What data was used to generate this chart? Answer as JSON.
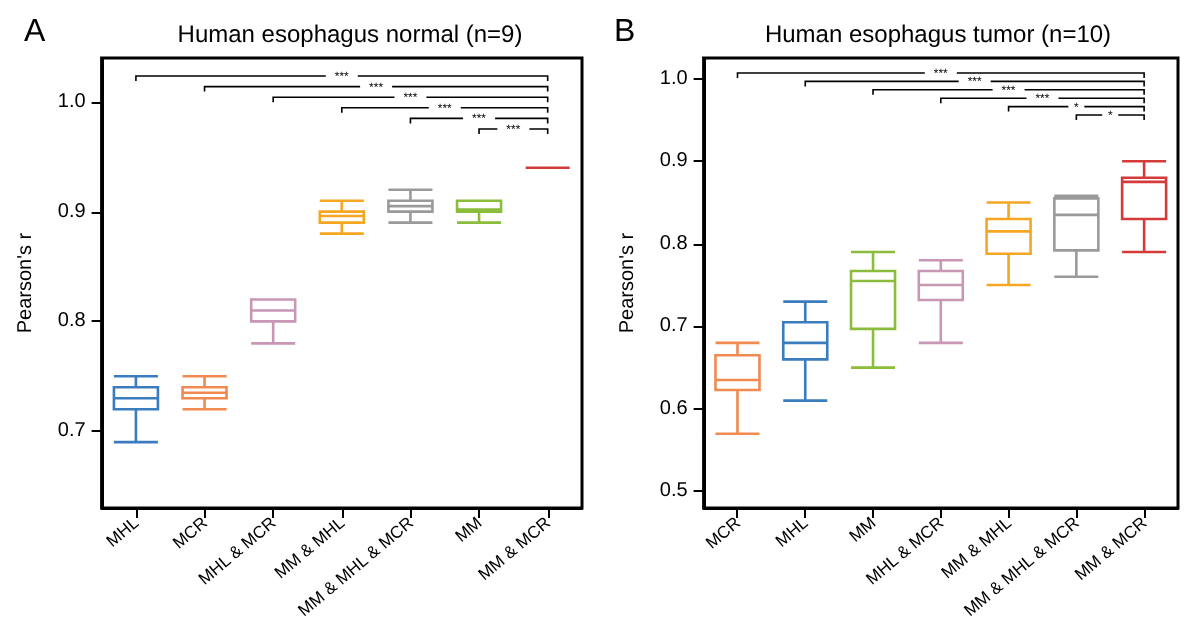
{
  "chart_data": [
    {
      "type": "box",
      "title": "Human esophagus normal (n=9)",
      "ylabel": "Pearson's r",
      "categories": [
        "MHL",
        "MCR",
        "MHL & MCR",
        "MM & MHL",
        "MM & MHL & MCR",
        "MM",
        "MM & MCR"
      ],
      "colors": [
        "#3a7dbf",
        "#f08a50",
        "#c897b4",
        "#f5a623",
        "#9a9a9a",
        "#8cbc3c",
        "#d43a3a"
      ],
      "boxes": [
        {
          "low": 0.69,
          "q1": 0.72,
          "median": 0.73,
          "q3": 0.74,
          "high": 0.75
        },
        {
          "low": 0.72,
          "q1": 0.73,
          "median": 0.735,
          "q3": 0.74,
          "high": 0.75
        },
        {
          "low": 0.78,
          "q1": 0.8,
          "median": 0.81,
          "q3": 0.82,
          "high": 0.82
        },
        {
          "low": 0.88,
          "q1": 0.89,
          "median": 0.896,
          "q3": 0.9,
          "high": 0.91
        },
        {
          "low": 0.89,
          "q1": 0.9,
          "median": 0.905,
          "q3": 0.91,
          "high": 0.92
        },
        {
          "low": 0.89,
          "q1": 0.9,
          "median": 0.902,
          "q3": 0.91,
          "high": 0.91
        },
        {
          "low": 0.94,
          "q1": 0.94,
          "median": 0.94,
          "q3": 0.94,
          "high": 0.94
        }
      ],
      "ylim": [
        0.63,
        1.04
      ],
      "yticks": [
        0.7,
        0.8,
        0.9,
        {
          "value": 1.0,
          "label": "1.0"
        }
      ],
      "grid": false,
      "annotations": [
        "A",
        "***",
        "***",
        "***",
        "***",
        "***",
        "***"
      ]
    },
    {
      "type": "box",
      "title": "Human esophagus tumor (n=10)",
      "ylabel": "Pearson's r",
      "categories": [
        "MCR",
        "MHL",
        "MM",
        "MHL & MCR",
        "MM & MHL",
        "MM & MHL & MCR",
        "MM & MCR"
      ],
      "colors": [
        "#f08a50",
        "#3a7dbf",
        "#8cbc3c",
        "#c897b4",
        "#f5a623",
        "#9a9a9a",
        "#d43a3a"
      ],
      "boxes": [
        {
          "low": 0.57,
          "q1": 0.623,
          "median": 0.635,
          "q3": 0.665,
          "high": 0.68
        },
        {
          "low": 0.61,
          "q1": 0.66,
          "median": 0.68,
          "q3": 0.705,
          "high": 0.73
        },
        {
          "low": 0.65,
          "q1": 0.697,
          "median": 0.755,
          "q3": 0.767,
          "high": 0.79
        },
        {
          "low": 0.68,
          "q1": 0.732,
          "median": 0.75,
          "q3": 0.767,
          "high": 0.78
        },
        {
          "low": 0.75,
          "q1": 0.788,
          "median": 0.815,
          "q3": 0.83,
          "high": 0.85
        },
        {
          "low": 0.76,
          "q1": 0.792,
          "median": 0.835,
          "q3": 0.855,
          "high": 0.858
        },
        {
          "low": 0.79,
          "q1": 0.83,
          "median": 0.875,
          "q3": 0.88,
          "high": 0.9
        }
      ],
      "ylim": [
        0.48,
        1.025
      ],
      "yticks": [
        0.5,
        0.6,
        0.7,
        0.8,
        0.9,
        {
          "value": 1.0,
          "label": "1.0"
        }
      ],
      "grid": false,
      "annotations": [
        "B",
        "***",
        "***",
        "***",
        "***",
        "*",
        "*"
      ]
    }
  ]
}
